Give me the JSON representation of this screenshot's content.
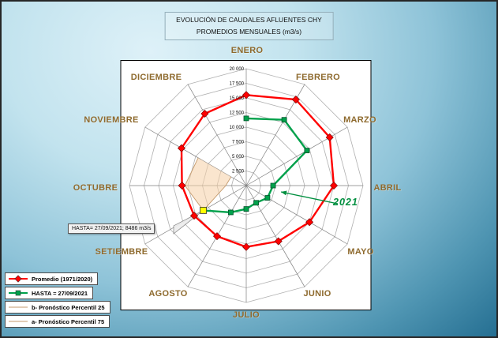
{
  "title": {
    "line1": "EVOLUCIÓN DE CAUDALES AFLUENTES CHY",
    "line2": "PROMEDIOS MENSUALES (m3/s)"
  },
  "chart_data": {
    "type": "radar",
    "categories": [
      "ENERO",
      "FEBRERO",
      "MARZO",
      "ABRIL",
      "MAYO",
      "JUNIO",
      "JULIO",
      "AGOSTO",
      "SETIEMBRE",
      "OCTUBRE",
      "NOVIEMBRE",
      "DICIEMBRE"
    ],
    "radial_axis": {
      "min": 0,
      "max": 20000,
      "step": 2500,
      "tick_labels": [
        "2 500",
        "5 000",
        "7 500",
        "10 000",
        "12 500",
        "15 000",
        "17 500",
        "20 000"
      ]
    },
    "series": [
      {
        "name": "Promedio (1971/2020)",
        "color": "#ff0000",
        "marker": "diamond",
        "closed": true,
        "values": [
          15500,
          17000,
          16500,
          15000,
          12500,
          11000,
          10500,
          10000,
          10300,
          11000,
          12800,
          14200
        ]
      },
      {
        "name": "HASTA = 27/09/2021",
        "color": "#00a14b",
        "marker": "square",
        "closed": false,
        "values": [
          11500,
          13000,
          12000,
          4600,
          4200,
          3400,
          4000,
          5300,
          8486,
          null,
          null,
          null
        ],
        "highlight": {
          "index": 8,
          "color": "#ffff00"
        }
      },
      {
        "name": "b- Pronóstico Percentil 25",
        "color": "#c49a6c",
        "marker": "none",
        "closed": false,
        "values": [
          null,
          null,
          null,
          null,
          null,
          null,
          null,
          null,
          8486,
          3500,
          3000,
          null
        ]
      },
      {
        "name": "a- Pronóstico Percentil 75",
        "color": "#c49a6c",
        "marker": "none",
        "closed": false,
        "values": [
          null,
          null,
          null,
          null,
          null,
          null,
          null,
          null,
          8486,
          10500,
          9500,
          null
        ]
      }
    ],
    "fan_fill": "#f5cfa6",
    "annotations": {
      "year_label": "2021",
      "year_color": "#008f3f",
      "callout_text": "HASTA= 27/09/2021; 8486 m3/s"
    }
  },
  "legend": [
    {
      "label": "Promedio (1971/2020)",
      "color": "#ff0000",
      "marker": "diamond"
    },
    {
      "label": "HASTA = 27/09/2021",
      "color": "#00a14b",
      "marker": "square"
    },
    {
      "label": "b- Pronóstico Percentil 25",
      "color": "#c49a6c",
      "marker": "line"
    },
    {
      "label": "a- Pronóstico Percentil 75",
      "color": "#c49a6c",
      "marker": "line"
    }
  ]
}
